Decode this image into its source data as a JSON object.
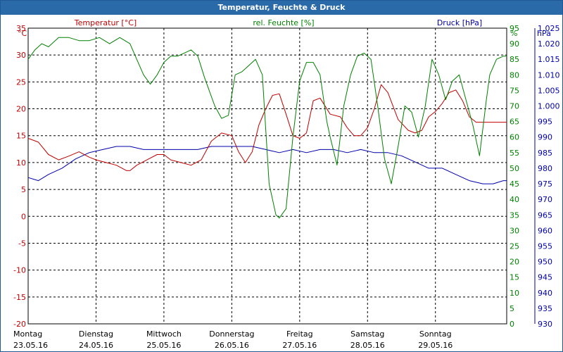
{
  "chart_data": {
    "type": "line",
    "title": "Temperatur, Feuchte & Druck",
    "colors": {
      "temperature": "#c00000",
      "humidity": "#008000",
      "pressure": "#0000aa",
      "title_bar": "#2a6aa9"
    },
    "x_labels": [
      {
        "day": "Montag",
        "date": "23.05.16"
      },
      {
        "day": "Dienstag",
        "date": "24.05.16"
      },
      {
        "day": "Mittwoch",
        "date": "25.05.16"
      },
      {
        "day": "Donnerstag",
        "date": "26.05.16"
      },
      {
        "day": "Freitag",
        "date": "27.05.16"
      },
      {
        "day": "Samstag",
        "date": "28.05.16"
      },
      {
        "day": "Sonntag",
        "date": "29.05.16"
      }
    ],
    "x_range_days": [
      0,
      7.05
    ],
    "axes": {
      "temperature": {
        "label": "Temperatur [°C]",
        "unit": "°C",
        "min": -20,
        "max": 35,
        "ticks": [
          "35",
          "30",
          "25",
          "20",
          "15",
          "10",
          "5",
          "0",
          "-5",
          "-10",
          "-15",
          "-20"
        ]
      },
      "humidity": {
        "label": "rel. Feuchte [%]",
        "unit": "%",
        "min": 0,
        "max": 95,
        "ticks": [
          "95",
          "90",
          "85",
          "80",
          "75",
          "70",
          "65",
          "60",
          "55",
          "50",
          "45",
          "40",
          "35",
          "30",
          "25",
          "20",
          "15",
          "10",
          "5",
          "0"
        ]
      },
      "pressure": {
        "label": "Druck [hPa]",
        "unit": "hPa",
        "min": 930,
        "max": 1025,
        "ticks": [
          "1.025",
          "1.020",
          "1.015",
          "1.010",
          "1.005",
          "1.000",
          "995",
          "990",
          "985",
          "980",
          "975",
          "970",
          "965",
          "960",
          "955",
          "950",
          "945",
          "940",
          "935",
          "930"
        ]
      }
    },
    "series": [
      {
        "name": "Temperatur",
        "axis": "temperature",
        "x": [
          0,
          0.15,
          0.3,
          0.45,
          0.6,
          0.75,
          0.9,
          1.0,
          1.15,
          1.3,
          1.45,
          1.5,
          1.6,
          1.75,
          1.9,
          2.0,
          2.1,
          2.25,
          2.4,
          2.55,
          2.7,
          2.85,
          3.0,
          3.1,
          3.2,
          3.3,
          3.4,
          3.5,
          3.6,
          3.7,
          3.8,
          3.9,
          4.0,
          4.1,
          4.2,
          4.3,
          4.45,
          4.6,
          4.7,
          4.8,
          4.9,
          5.0,
          5.1,
          5.2,
          5.3,
          5.45,
          5.6,
          5.7,
          5.8,
          5.9,
          6.0,
          6.1,
          6.2,
          6.3,
          6.4,
          6.5,
          6.6,
          6.7,
          6.8,
          6.9,
          7.0,
          7.05
        ],
        "y": [
          14.5,
          13.8,
          11.5,
          10.5,
          11.2,
          12.0,
          11.0,
          10.5,
          10.0,
          9.5,
          8.5,
          8.5,
          9.5,
          10.5,
          11.5,
          11.5,
          10.5,
          10.0,
          9.5,
          10.5,
          14.0,
          15.5,
          15.0,
          12.0,
          10.0,
          12.0,
          17.0,
          20.0,
          22.5,
          22.8,
          19.0,
          15.0,
          14.5,
          15.5,
          21.5,
          22.0,
          19.0,
          18.5,
          16.5,
          15.0,
          15.0,
          16.5,
          20.0,
          24.5,
          23.0,
          18.0,
          16.0,
          15.5,
          16.0,
          18.5,
          19.5,
          21.0,
          23.0,
          23.5,
          21.5,
          18.5,
          17.5,
          17.5,
          17.5,
          17.5,
          17.5,
          17.5
        ]
      },
      {
        "name": "rel. Feuchte",
        "axis": "humidity",
        "x": [
          0,
          0.1,
          0.2,
          0.3,
          0.45,
          0.6,
          0.75,
          0.9,
          1.05,
          1.2,
          1.35,
          1.5,
          1.6,
          1.7,
          1.8,
          1.9,
          2.0,
          2.1,
          2.2,
          2.3,
          2.4,
          2.5,
          2.6,
          2.75,
          2.85,
          2.95,
          3.05,
          3.15,
          3.25,
          3.35,
          3.45,
          3.55,
          3.65,
          3.7,
          3.8,
          3.9,
          4.0,
          4.1,
          4.2,
          4.3,
          4.4,
          4.45,
          4.55,
          4.65,
          4.75,
          4.85,
          4.95,
          5.05,
          5.15,
          5.25,
          5.35,
          5.45,
          5.55,
          5.65,
          5.75,
          5.85,
          5.95,
          6.05,
          6.15,
          6.25,
          6.35,
          6.45,
          6.55,
          6.65,
          6.75,
          6.8,
          6.9,
          7.0,
          7.05
        ],
        "y": [
          85,
          88,
          90,
          89,
          92,
          92,
          91,
          91,
          92,
          90,
          92,
          90,
          85,
          80,
          77,
          80,
          84,
          86,
          86,
          87,
          88,
          86,
          79,
          70,
          66,
          67,
          80,
          81,
          83,
          85,
          80,
          45,
          35,
          34,
          37,
          60,
          78,
          84,
          84,
          80,
          65,
          60,
          51,
          70,
          80,
          86,
          87,
          85,
          70,
          53,
          45,
          57,
          70,
          68,
          60,
          70,
          85,
          80,
          72,
          78,
          80,
          72,
          64,
          54,
          72,
          80,
          85,
          86,
          86
        ]
      },
      {
        "name": "Druck",
        "axis": "pressure",
        "x": [
          0,
          0.15,
          0.3,
          0.5,
          0.7,
          0.9,
          1.1,
          1.3,
          1.5,
          1.7,
          1.9,
          2.1,
          2.3,
          2.5,
          2.7,
          2.9,
          3.1,
          3.3,
          3.5,
          3.7,
          3.9,
          4.1,
          4.3,
          4.5,
          4.7,
          4.9,
          5.1,
          5.3,
          5.5,
          5.7,
          5.9,
          6.1,
          6.3,
          6.5,
          6.7,
          6.85,
          7.0,
          7.05
        ],
        "y": [
          977,
          976,
          978,
          980,
          983,
          985,
          986,
          987,
          987,
          986,
          986,
          986,
          986,
          986,
          987,
          987,
          987,
          987,
          986,
          985,
          986,
          985,
          986,
          986,
          985,
          986,
          985,
          985,
          984,
          982,
          980,
          980,
          978,
          976,
          975,
          975,
          976,
          976
        ]
      }
    ]
  }
}
